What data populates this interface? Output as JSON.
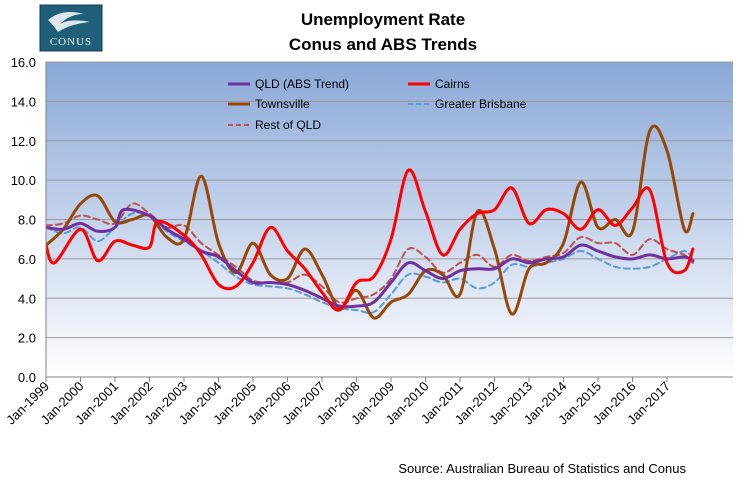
{
  "chart_data": {
    "type": "line",
    "title": "Unemployment Rate",
    "subtitle": "Conus and ABS Trends",
    "source": "Source: Australian Bureau of Statistics and Conus",
    "logo": {
      "text": "CONUS"
    },
    "xlabel": "",
    "ylabel": "",
    "x_start": "Jan-1999",
    "x_end": "Oct-2017",
    "x_ticks": [
      "Jan-1999",
      "Jan-2000",
      "Jan-2001",
      "Jan-2002",
      "Jan-2003",
      "Jan-2004",
      "Jan-2005",
      "Jan-2006",
      "Jan-2007",
      "Jan-2008",
      "Jan-2009",
      "Jan-2010",
      "Jan-2011",
      "Jan-2012",
      "Jan-2013",
      "Jan-2014",
      "Jan-2015",
      "Jan-2016",
      "Jan-2017"
    ],
    "y_ticks": [
      "0.0",
      "2.0",
      "4.0",
      "6.0",
      "8.0",
      "10.0",
      "12.0",
      "14.0",
      "16.0"
    ],
    "ylim": [
      0,
      16
    ],
    "grid": true,
    "legend_position": "top",
    "series": [
      {
        "name": "QLD (ABS Trend)",
        "color": "#7030a0",
        "style": "solid",
        "points": [
          [
            "Jan-1999",
            7.6
          ],
          [
            "Jul-1999",
            7.5
          ],
          [
            "Jan-2000",
            7.8
          ],
          [
            "Jul-2000",
            7.4
          ],
          [
            "Jan-2001",
            7.6
          ],
          [
            "Apr-2001",
            8.5
          ],
          [
            "Jan-2002",
            8.2
          ],
          [
            "Jul-2002",
            7.5
          ],
          [
            "Jan-2003",
            7.0
          ],
          [
            "Jul-2003",
            6.4
          ],
          [
            "Jan-2004",
            6.1
          ],
          [
            "Jul-2004",
            5.4
          ],
          [
            "Jan-2005",
            4.8
          ],
          [
            "Jul-2005",
            4.8
          ],
          [
            "Jan-2006",
            4.7
          ],
          [
            "Jul-2006",
            4.4
          ],
          [
            "Jan-2007",
            4.0
          ],
          [
            "Jul-2007",
            3.6
          ],
          [
            "Jan-2008",
            3.6
          ],
          [
            "Jul-2008",
            3.8
          ],
          [
            "Jan-2009",
            4.8
          ],
          [
            "Jul-2009",
            5.8
          ],
          [
            "Jan-2010",
            5.4
          ],
          [
            "Jul-2010",
            5.0
          ],
          [
            "Jan-2011",
            5.4
          ],
          [
            "Jul-2011",
            5.5
          ],
          [
            "Jan-2012",
            5.5
          ],
          [
            "Jul-2012",
            6.0
          ],
          [
            "Jan-2013",
            5.8
          ],
          [
            "Jul-2013",
            6.0
          ],
          [
            "Jan-2014",
            6.1
          ],
          [
            "Jul-2014",
            6.7
          ],
          [
            "Jan-2015",
            6.4
          ],
          [
            "Jul-2015",
            6.1
          ],
          [
            "Jan-2016",
            6.0
          ],
          [
            "Jul-2016",
            6.2
          ],
          [
            "Jan-2017",
            6.0
          ],
          [
            "Jul-2017",
            6.1
          ],
          [
            "Oct-2017",
            5.9
          ]
        ]
      },
      {
        "name": "Cairns",
        "color": "#ff0000",
        "style": "solid",
        "points": [
          [
            "Jan-1999",
            6.7
          ],
          [
            "Apr-1999",
            5.8
          ],
          [
            "Jan-2000",
            7.5
          ],
          [
            "Jul-2000",
            5.9
          ],
          [
            "Jan-2001",
            6.9
          ],
          [
            "Jul-2001",
            6.7
          ],
          [
            "Jan-2002",
            6.6
          ],
          [
            "Apr-2002",
            7.9
          ],
          [
            "Jan-2003",
            7.2
          ],
          [
            "Jul-2003",
            6.2
          ],
          [
            "Jan-2004",
            4.7
          ],
          [
            "Jul-2004",
            4.6
          ],
          [
            "Jan-2005",
            5.8
          ],
          [
            "Jul-2005",
            7.6
          ],
          [
            "Jan-2006",
            6.4
          ],
          [
            "Jul-2006",
            5.5
          ],
          [
            "Jan-2007",
            4.3
          ],
          [
            "Jul-2007",
            3.4
          ],
          [
            "Jan-2008",
            4.8
          ],
          [
            "Jul-2008",
            5.1
          ],
          [
            "Jan-2009",
            7.0
          ],
          [
            "Jul-2009",
            10.5
          ],
          [
            "Jan-2010",
            8.4
          ],
          [
            "Jul-2010",
            6.2
          ],
          [
            "Jan-2011",
            7.5
          ],
          [
            "Jul-2011",
            8.3
          ],
          [
            "Jan-2012",
            8.5
          ],
          [
            "Jul-2012",
            9.6
          ],
          [
            "Jan-2013",
            7.8
          ],
          [
            "Jul-2013",
            8.5
          ],
          [
            "Jan-2014",
            8.3
          ],
          [
            "Jul-2014",
            7.5
          ],
          [
            "Jan-2015",
            8.5
          ],
          [
            "Jul-2015",
            7.7
          ],
          [
            "Jan-2016",
            8.6
          ],
          [
            "Jul-2016",
            9.5
          ],
          [
            "Jan-2017",
            5.8
          ],
          [
            "Jul-2017",
            5.4
          ],
          [
            "Oct-2017",
            6.5
          ]
        ]
      },
      {
        "name": "Townsville",
        "color": "#974706",
        "style": "solid",
        "points": [
          [
            "Jan-1999",
            6.7
          ],
          [
            "Jul-1999",
            7.5
          ],
          [
            "Jan-2000",
            8.8
          ],
          [
            "Jul-2000",
            9.2
          ],
          [
            "Jan-2001",
            7.9
          ],
          [
            "Jul-2001",
            8.0
          ],
          [
            "Jan-2002",
            8.2
          ],
          [
            "Jul-2002",
            7.1
          ],
          [
            "Jan-2003",
            7.0
          ],
          [
            "Jul-2003",
            10.2
          ],
          [
            "Jan-2004",
            6.8
          ],
          [
            "Jul-2004",
            5.3
          ],
          [
            "Jan-2005",
            6.8
          ],
          [
            "Jul-2005",
            5.2
          ],
          [
            "Jan-2006",
            5.0
          ],
          [
            "Jul-2006",
            6.5
          ],
          [
            "Jan-2007",
            5.2
          ],
          [
            "Jul-2007",
            3.5
          ],
          [
            "Jan-2008",
            4.4
          ],
          [
            "Jul-2008",
            3.0
          ],
          [
            "Jan-2009",
            3.8
          ],
          [
            "Jul-2009",
            4.2
          ],
          [
            "Jan-2010",
            5.4
          ],
          [
            "Jul-2010",
            5.2
          ],
          [
            "Jan-2011",
            4.2
          ],
          [
            "Jul-2011",
            8.4
          ],
          [
            "Jan-2012",
            6.5
          ],
          [
            "Jul-2012",
            3.2
          ],
          [
            "Jan-2013",
            5.5
          ],
          [
            "Jul-2013",
            5.8
          ],
          [
            "Jan-2014",
            6.8
          ],
          [
            "Jul-2014",
            9.9
          ],
          [
            "Jan-2015",
            7.6
          ],
          [
            "Jul-2015",
            8.0
          ],
          [
            "Jan-2016",
            7.4
          ],
          [
            "Jul-2016",
            12.5
          ],
          [
            "Jan-2017",
            11.5
          ],
          [
            "Jul-2017",
            7.5
          ],
          [
            "Oct-2017",
            8.3
          ]
        ]
      },
      {
        "name": "Greater Brisbane",
        "color": "#5b9bd5",
        "style": "dashed",
        "points": [
          [
            "Jan-1999",
            7.6
          ],
          [
            "Jul-1999",
            7.3
          ],
          [
            "Jan-2000",
            7.6
          ],
          [
            "Jul-2000",
            6.9
          ],
          [
            "Jan-2001",
            7.6
          ],
          [
            "Jul-2001",
            8.3
          ],
          [
            "Jan-2002",
            8.2
          ],
          [
            "Jul-2002",
            7.4
          ],
          [
            "Jan-2003",
            6.9
          ],
          [
            "Jul-2003",
            6.4
          ],
          [
            "Jan-2004",
            5.8
          ],
          [
            "Jul-2004",
            5.1
          ],
          [
            "Jan-2005",
            4.7
          ],
          [
            "Jul-2005",
            4.6
          ],
          [
            "Jan-2006",
            4.5
          ],
          [
            "Jul-2006",
            4.2
          ],
          [
            "Jan-2007",
            3.8
          ],
          [
            "Jul-2007",
            3.5
          ],
          [
            "Jan-2008",
            3.4
          ],
          [
            "Jul-2008",
            3.3
          ],
          [
            "Jan-2009",
            4.2
          ],
          [
            "Jul-2009",
            5.2
          ],
          [
            "Jan-2010",
            5.1
          ],
          [
            "Jul-2010",
            4.8
          ],
          [
            "Jan-2011",
            5.0
          ],
          [
            "Jul-2011",
            4.5
          ],
          [
            "Jan-2012",
            4.8
          ],
          [
            "Jul-2012",
            5.7
          ],
          [
            "Jan-2013",
            5.6
          ],
          [
            "Jul-2013",
            5.8
          ],
          [
            "Jan-2014",
            6.0
          ],
          [
            "Jul-2014",
            6.4
          ],
          [
            "Jan-2015",
            6.0
          ],
          [
            "Jul-2015",
            5.6
          ],
          [
            "Jan-2016",
            5.5
          ],
          [
            "Jul-2016",
            5.6
          ],
          [
            "Jan-2017",
            6.0
          ],
          [
            "Jul-2017",
            6.4
          ],
          [
            "Oct-2017",
            6.0
          ]
        ]
      },
      {
        "name": "Rest of QLD",
        "color": "#c0504d",
        "style": "dashed",
        "points": [
          [
            "Jan-1999",
            7.7
          ],
          [
            "Jul-1999",
            7.8
          ],
          [
            "Jan-2000",
            8.2
          ],
          [
            "Jul-2000",
            8.0
          ],
          [
            "Jan-2001",
            7.8
          ],
          [
            "Jul-2001",
            8.8
          ],
          [
            "Jan-2002",
            8.3
          ],
          [
            "Jul-2002",
            7.6
          ],
          [
            "Jan-2003",
            7.7
          ],
          [
            "Jul-2003",
            6.8
          ],
          [
            "Jan-2004",
            6.2
          ],
          [
            "Jul-2004",
            5.6
          ],
          [
            "Jan-2005",
            4.9
          ],
          [
            "Jul-2005",
            4.8
          ],
          [
            "Jan-2006",
            4.8
          ],
          [
            "Jul-2006",
            5.2
          ],
          [
            "Jan-2007",
            4.6
          ],
          [
            "Jul-2007",
            3.8
          ],
          [
            "Jan-2008",
            4.0
          ],
          [
            "Jul-2008",
            4.2
          ],
          [
            "Jan-2009",
            5.0
          ],
          [
            "Jul-2009",
            6.5
          ],
          [
            "Jan-2010",
            6.1
          ],
          [
            "Jul-2010",
            5.3
          ],
          [
            "Jan-2011",
            5.8
          ],
          [
            "Jul-2011",
            6.2
          ],
          [
            "Jan-2012",
            5.6
          ],
          [
            "Jul-2012",
            6.2
          ],
          [
            "Jan-2013",
            5.9
          ],
          [
            "Jul-2013",
            6.1
          ],
          [
            "Jan-2014",
            6.3
          ],
          [
            "Jul-2014",
            7.1
          ],
          [
            "Jan-2015",
            6.8
          ],
          [
            "Jul-2015",
            6.8
          ],
          [
            "Jan-2016",
            6.2
          ],
          [
            "Jul-2016",
            7.0
          ],
          [
            "Jan-2017",
            6.5
          ],
          [
            "Jul-2017",
            6.2
          ],
          [
            "Oct-2017",
            5.8
          ]
        ]
      }
    ]
  }
}
